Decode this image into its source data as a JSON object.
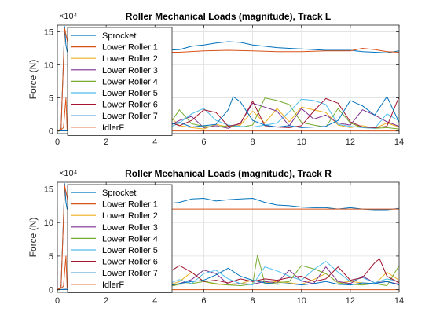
{
  "figure": {
    "colors": [
      "#0072BD",
      "#D95319",
      "#EDB120",
      "#7E2F8E",
      "#77AC30",
      "#4DBEEE",
      "#A2142F",
      "#0072BD",
      "#D95319"
    ],
    "grid_color": "#e0e0e0",
    "axis_color": "#262626"
  },
  "chart_data": [
    {
      "type": "line",
      "title": "Roller Mechanical Loads (magnitude), Track L",
      "ylabel": "Force (N)",
      "xlabel": "",
      "exponent_label": "×10⁴",
      "xlim": [
        0,
        14
      ],
      "ylim": [
        -0.4,
        16
      ],
      "x_ticks": [
        0,
        2,
        4,
        6,
        8,
        10,
        12,
        14
      ],
      "y_ticks": [
        0,
        5,
        10,
        15
      ],
      "grid": true,
      "legend_placement": "top-left",
      "series": [
        {
          "name": "Sprocket",
          "x": [
            0,
            0.15,
            0.3,
            0.35,
            0.4,
            0.5,
            0.8,
            1.2,
            2,
            3,
            4,
            4.5,
            5,
            5.5,
            6,
            6.5,
            7,
            7.5,
            8,
            8.5,
            9,
            9.5,
            10,
            10.5,
            11,
            11.5,
            12,
            12.5,
            13,
            13.5,
            14
          ],
          "y": [
            0,
            0.3,
            15.8,
            13,
            12,
            11.9,
            12.2,
            12.0,
            12.1,
            12.0,
            12.0,
            12.2,
            12.3,
            12.8,
            13.0,
            13.3,
            13.5,
            13.4,
            13.0,
            12.8,
            12.6,
            12.5,
            12.4,
            12.3,
            12.2,
            12.2,
            12.2,
            12.0,
            11.9,
            11.8,
            12.1
          ]
        },
        {
          "name": "Lower Roller 1",
          "x": [
            0,
            0.15,
            0.3,
            0.5,
            1,
            2,
            3,
            4,
            5,
            6,
            7,
            8,
            9,
            10,
            11,
            12,
            12.5,
            13,
            13.5,
            14
          ],
          "y": [
            0,
            0.3,
            15.5,
            12.0,
            11.9,
            11.9,
            11.8,
            11.9,
            11.9,
            12.1,
            12.2,
            12.1,
            12.0,
            12.0,
            12.1,
            12.1,
            12.5,
            12.3,
            12.0,
            11.9
          ]
        },
        {
          "name": "Lower Roller 2",
          "x": [
            0,
            0.5,
            1,
            2,
            3,
            4,
            4.5,
            5,
            5.5,
            6,
            6.5,
            7,
            7.5,
            8,
            8.5,
            9,
            9.5,
            10,
            10.5,
            11,
            11.5,
            12,
            12.5,
            13,
            13.5,
            14
          ],
          "y": [
            0,
            0.2,
            0.1,
            0.2,
            0.3,
            0.4,
            2.6,
            0.8,
            0.5,
            0.3,
            1.0,
            0.6,
            0.9,
            3.0,
            1.2,
            3.4,
            1.4,
            3.6,
            3.2,
            2.8,
            0.9,
            0.5,
            0.8,
            0.4,
            1.2,
            0.6
          ]
        },
        {
          "name": "Lower Roller 3",
          "x": [
            0,
            1,
            2,
            3,
            4,
            4.5,
            5,
            5.5,
            6,
            6.5,
            7,
            7.5,
            8,
            8.5,
            9,
            9.5,
            10,
            10.5,
            11,
            11.5,
            12,
            12.5,
            13,
            13.5,
            14
          ],
          "y": [
            0,
            0.2,
            0.2,
            0.3,
            0.3,
            0.6,
            1.6,
            2.2,
            0.5,
            0.8,
            0.4,
            1.2,
            4.2,
            3.6,
            3.0,
            0.8,
            3.4,
            1.8,
            2.4,
            1.2,
            0.9,
            3.2,
            2.4,
            1.4,
            0.7
          ]
        },
        {
          "name": "Lower Roller 4",
          "x": [
            0,
            1,
            2,
            3,
            4,
            4.5,
            5,
            5.5,
            6,
            6.5,
            7,
            7.5,
            8,
            8.5,
            9,
            9.5,
            10,
            10.5,
            11,
            11.5,
            12,
            12.5,
            13,
            13.5,
            14
          ],
          "y": [
            0,
            0.1,
            0.2,
            0.2,
            0.3,
            0.5,
            3.2,
            1.1,
            0.7,
            0.6,
            0.8,
            0.6,
            0.9,
            5.0,
            4.6,
            4.0,
            1.3,
            0.9,
            0.6,
            3.4,
            1.2,
            0.5,
            0.4,
            0.5,
            0.3
          ]
        },
        {
          "name": "Lower Roller 5",
          "x": [
            0,
            1,
            2,
            3,
            4,
            4.5,
            5,
            5.5,
            6,
            6.5,
            7,
            7.5,
            8,
            8.5,
            9,
            9.5,
            10,
            10.5,
            11,
            11.5,
            12,
            12.5,
            13,
            13.5,
            14
          ],
          "y": [
            0,
            0.1,
            0.1,
            0.2,
            0.3,
            0.4,
            1.2,
            2.6,
            3.4,
            1.6,
            0.9,
            0.7,
            0.6,
            0.9,
            1.2,
            2.9,
            4.8,
            4.6,
            4.0,
            1.0,
            0.7,
            0.5,
            0.4,
            2.6,
            1.5
          ]
        },
        {
          "name": "Lower Roller 6",
          "x": [
            0,
            1,
            2,
            3,
            4,
            4.5,
            5,
            5.5,
            6,
            6.5,
            7,
            7.5,
            8,
            8.5,
            9,
            9.5,
            10,
            10.5,
            11,
            11.5,
            12,
            12.5,
            13,
            13.5,
            14
          ],
          "y": [
            0,
            0.1,
            0.2,
            0.2,
            0.3,
            1.5,
            0.8,
            1.6,
            3.2,
            2.8,
            0.7,
            1.1,
            4.5,
            0.8,
            0.6,
            0.5,
            0.8,
            3.0,
            4.9,
            4.2,
            1.4,
            0.6,
            0.5,
            0.7,
            5.2
          ]
        },
        {
          "name": "Lower Roller 7",
          "x": [
            0,
            1,
            2,
            3,
            4,
            4.5,
            5,
            5.5,
            6,
            6.5,
            7,
            7.2,
            7.5,
            8,
            8.5,
            9,
            9.5,
            10,
            10.5,
            11,
            11.5,
            12,
            12.5,
            13,
            13.5,
            14
          ],
          "y": [
            0,
            0.1,
            0.1,
            0.2,
            0.3,
            0.9,
            1.3,
            0.6,
            0.8,
            1.0,
            3.2,
            5.2,
            4.4,
            1.6,
            0.9,
            0.6,
            0.8,
            0.5,
            0.6,
            0.7,
            1.6,
            4.6,
            3.8,
            2.4,
            5.2,
            1.3
          ]
        },
        {
          "name": "IdlerF",
          "x": [
            0,
            0.15,
            0.25,
            0.35,
            0.4,
            0.5,
            1,
            2,
            4,
            6,
            8,
            10,
            12,
            14
          ],
          "y": [
            0,
            0.2,
            0.5,
            5.0,
            0.3,
            0.1,
            0.0,
            0.0,
            0.0,
            0.0,
            0.0,
            0.0,
            0.0,
            0.0
          ]
        }
      ]
    },
    {
      "type": "line",
      "title": "Roller Mechanical Loads (magnitude), Track R",
      "ylabel": "Force (N)",
      "xlabel": "",
      "exponent_label": "×10⁴",
      "xlim": [
        0,
        14
      ],
      "ylim": [
        -0.4,
        16
      ],
      "x_ticks": [
        0,
        2,
        4,
        6,
        8,
        10,
        12,
        14
      ],
      "y_ticks": [
        0,
        5,
        10,
        15
      ],
      "grid": true,
      "legend_placement": "top-left",
      "series": [
        {
          "name": "Sprocket",
          "x": [
            0,
            0.15,
            0.3,
            0.35,
            0.4,
            0.5,
            0.8,
            1.2,
            2,
            3,
            4,
            4.5,
            5,
            5.5,
            6,
            6.5,
            7,
            7.5,
            8,
            8.5,
            9,
            9.5,
            10,
            10.5,
            11,
            11.5,
            12,
            12.5,
            13,
            13.5,
            14
          ],
          "y": [
            0,
            0.3,
            15.8,
            13,
            12,
            11.9,
            12.2,
            12.0,
            12.1,
            12.0,
            12.0,
            12.8,
            13.0,
            13.5,
            13.6,
            13.2,
            13.4,
            13.5,
            13.6,
            13.0,
            12.6,
            12.5,
            12.3,
            12.2,
            12.2,
            12.0,
            12.2,
            12.0,
            11.9,
            11.9,
            12.1
          ]
        },
        {
          "name": "Lower Roller 1",
          "x": [
            0,
            0.15,
            0.3,
            0.5,
            1,
            2,
            3,
            4,
            5,
            6,
            7,
            8,
            9,
            10,
            11,
            12,
            13,
            14
          ],
          "y": [
            0,
            0.3,
            15.5,
            12.0,
            11.9,
            11.9,
            11.9,
            12.0,
            12.0,
            12.0,
            12.0,
            12.0,
            12.0,
            12.0,
            12.0,
            12.0,
            12.0,
            12.0
          ]
        },
        {
          "name": "Lower Roller 2",
          "x": [
            0,
            1,
            2,
            3,
            4,
            4.5,
            5,
            5.5,
            6,
            6.5,
            7,
            7.5,
            8,
            8.5,
            9,
            9.5,
            10,
            10.5,
            11,
            11.5,
            12,
            12.5,
            13,
            13.5,
            14
          ],
          "y": [
            0,
            0.1,
            0.1,
            0.2,
            0.3,
            0.6,
            1.2,
            2.6,
            1.2,
            0.8,
            0.7,
            0.9,
            1.4,
            1.0,
            1.2,
            1.0,
            0.8,
            1.5,
            2.4,
            1.0,
            1.2,
            1.0,
            0.8,
            2.6,
            1.4
          ]
        },
        {
          "name": "Lower Roller 3",
          "x": [
            0,
            1,
            2,
            3,
            4,
            4.5,
            5,
            5.5,
            6,
            6.5,
            7,
            7.5,
            8,
            8.5,
            9,
            9.5,
            10,
            10.5,
            11,
            11.5,
            12,
            12.5,
            13,
            13.5,
            14
          ],
          "y": [
            0,
            0.1,
            0.2,
            0.2,
            0.3,
            0.5,
            0.9,
            1.5,
            2.9,
            2.4,
            0.8,
            0.9,
            0.8,
            1.2,
            1.0,
            2.9,
            1.3,
            0.9,
            3.4,
            1.2,
            0.9,
            2.0,
            1.0,
            1.2,
            0.8
          ]
        },
        {
          "name": "Lower Roller 4",
          "x": [
            0,
            1,
            2,
            3,
            4,
            4.5,
            5,
            5.5,
            6,
            6.5,
            7,
            7.5,
            8,
            8.2,
            8.5,
            9,
            9.5,
            10,
            10.5,
            11,
            11.5,
            12,
            12.5,
            13,
            13.5,
            14
          ],
          "y": [
            0,
            0.1,
            0.1,
            0.2,
            0.3,
            0.4,
            0.8,
            0.9,
            1.2,
            0.9,
            0.7,
            0.6,
            0.8,
            5.2,
            0.9,
            1.0,
            1.2,
            3.6,
            3.1,
            2.4,
            1.0,
            0.8,
            0.7,
            0.9,
            0.6,
            3.6
          ]
        },
        {
          "name": "Lower Roller 5",
          "x": [
            0,
            1,
            2,
            3,
            4,
            4.5,
            5,
            5.5,
            6,
            6.5,
            7,
            7.5,
            8,
            8.5,
            9,
            9.5,
            10,
            10.5,
            11,
            11.5,
            12,
            12.5,
            13,
            13.5,
            14
          ],
          "y": [
            0,
            0.1,
            0.1,
            0.2,
            0.3,
            0.8,
            1.5,
            0.9,
            2.4,
            2.9,
            1.6,
            0.9,
            0.7,
            3.4,
            2.8,
            2.0,
            1.4,
            3.0,
            4.2,
            2.6,
            1.2,
            1.8,
            1.0,
            1.6,
            1.2
          ]
        },
        {
          "name": "Lower Roller 6",
          "x": [
            0,
            1,
            2,
            3,
            4,
            4.5,
            5,
            5.5,
            6,
            6.5,
            7,
            7.5,
            8,
            8.5,
            9,
            9.5,
            10,
            10.5,
            11,
            11.5,
            12,
            12.5,
            13,
            13.2,
            13.5,
            14
          ],
          "y": [
            0,
            0.1,
            0.2,
            0.2,
            0.3,
            2.4,
            3.6,
            2.6,
            1.2,
            1.4,
            1.0,
            1.6,
            1.2,
            1.6,
            1.4,
            1.8,
            2.0,
            1.2,
            1.6,
            3.4,
            1.4,
            1.8,
            4.0,
            4.6,
            2.0,
            1.0
          ]
        },
        {
          "name": "Lower Roller 7",
          "x": [
            0,
            1,
            2,
            3,
            4,
            4.5,
            5,
            5.5,
            6,
            6.5,
            7,
            7.5,
            8,
            8.5,
            9,
            9.5,
            10,
            10.5,
            11,
            11.5,
            12,
            12.5,
            13,
            13.5,
            14
          ],
          "y": [
            0,
            0.1,
            0.1,
            0.2,
            0.3,
            0.6,
            0.9,
            1.2,
            1.4,
            2.2,
            3.2,
            2.0,
            1.4,
            1.0,
            0.8,
            0.9,
            0.7,
            0.9,
            1.2,
            0.8,
            0.7,
            1.0,
            0.9,
            1.2,
            0.7
          ]
        },
        {
          "name": "IdlerF",
          "x": [
            0,
            0.15,
            0.25,
            0.35,
            0.4,
            0.5,
            1,
            2,
            4,
            6,
            8,
            10,
            12,
            14
          ],
          "y": [
            0,
            0.2,
            0.5,
            5.0,
            0.3,
            0.1,
            0.0,
            0.0,
            0.0,
            0.0,
            0.0,
            0.0,
            0.0,
            0.0
          ]
        }
      ]
    }
  ]
}
